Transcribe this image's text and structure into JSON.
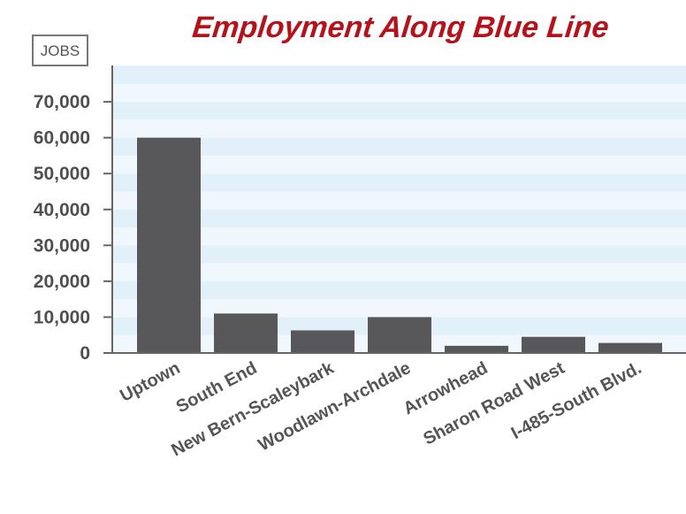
{
  "chart_data": {
    "type": "bar",
    "title": "Employment Along Blue Line",
    "ylabel": "JOBS",
    "xlabel": "",
    "categories": [
      "Uptown",
      "South End",
      "New Bern-Scaleybark",
      "Woodlawn-Archdale",
      "Arrowhead",
      "Sharon Road West",
      "I-485-South Blvd."
    ],
    "values": [
      60000,
      11000,
      6300,
      10000,
      2000,
      4500,
      2800
    ],
    "ylim": [
      0,
      70000
    ],
    "yticks": [
      0,
      10000,
      20000,
      30000,
      40000,
      50000,
      60000,
      70000
    ],
    "ytick_labels": [
      "0",
      "10,000",
      "20,000",
      "30,000",
      "40,000",
      "50,000",
      "60,000",
      "70,000"
    ],
    "grid": "alternating horizontal bands",
    "legend": "none"
  },
  "colors": {
    "bar": "#58585a",
    "title": "#b5121b",
    "band_light": "#f0f7fd",
    "band_dark": "#e2f0fa",
    "axis": "#666666"
  }
}
